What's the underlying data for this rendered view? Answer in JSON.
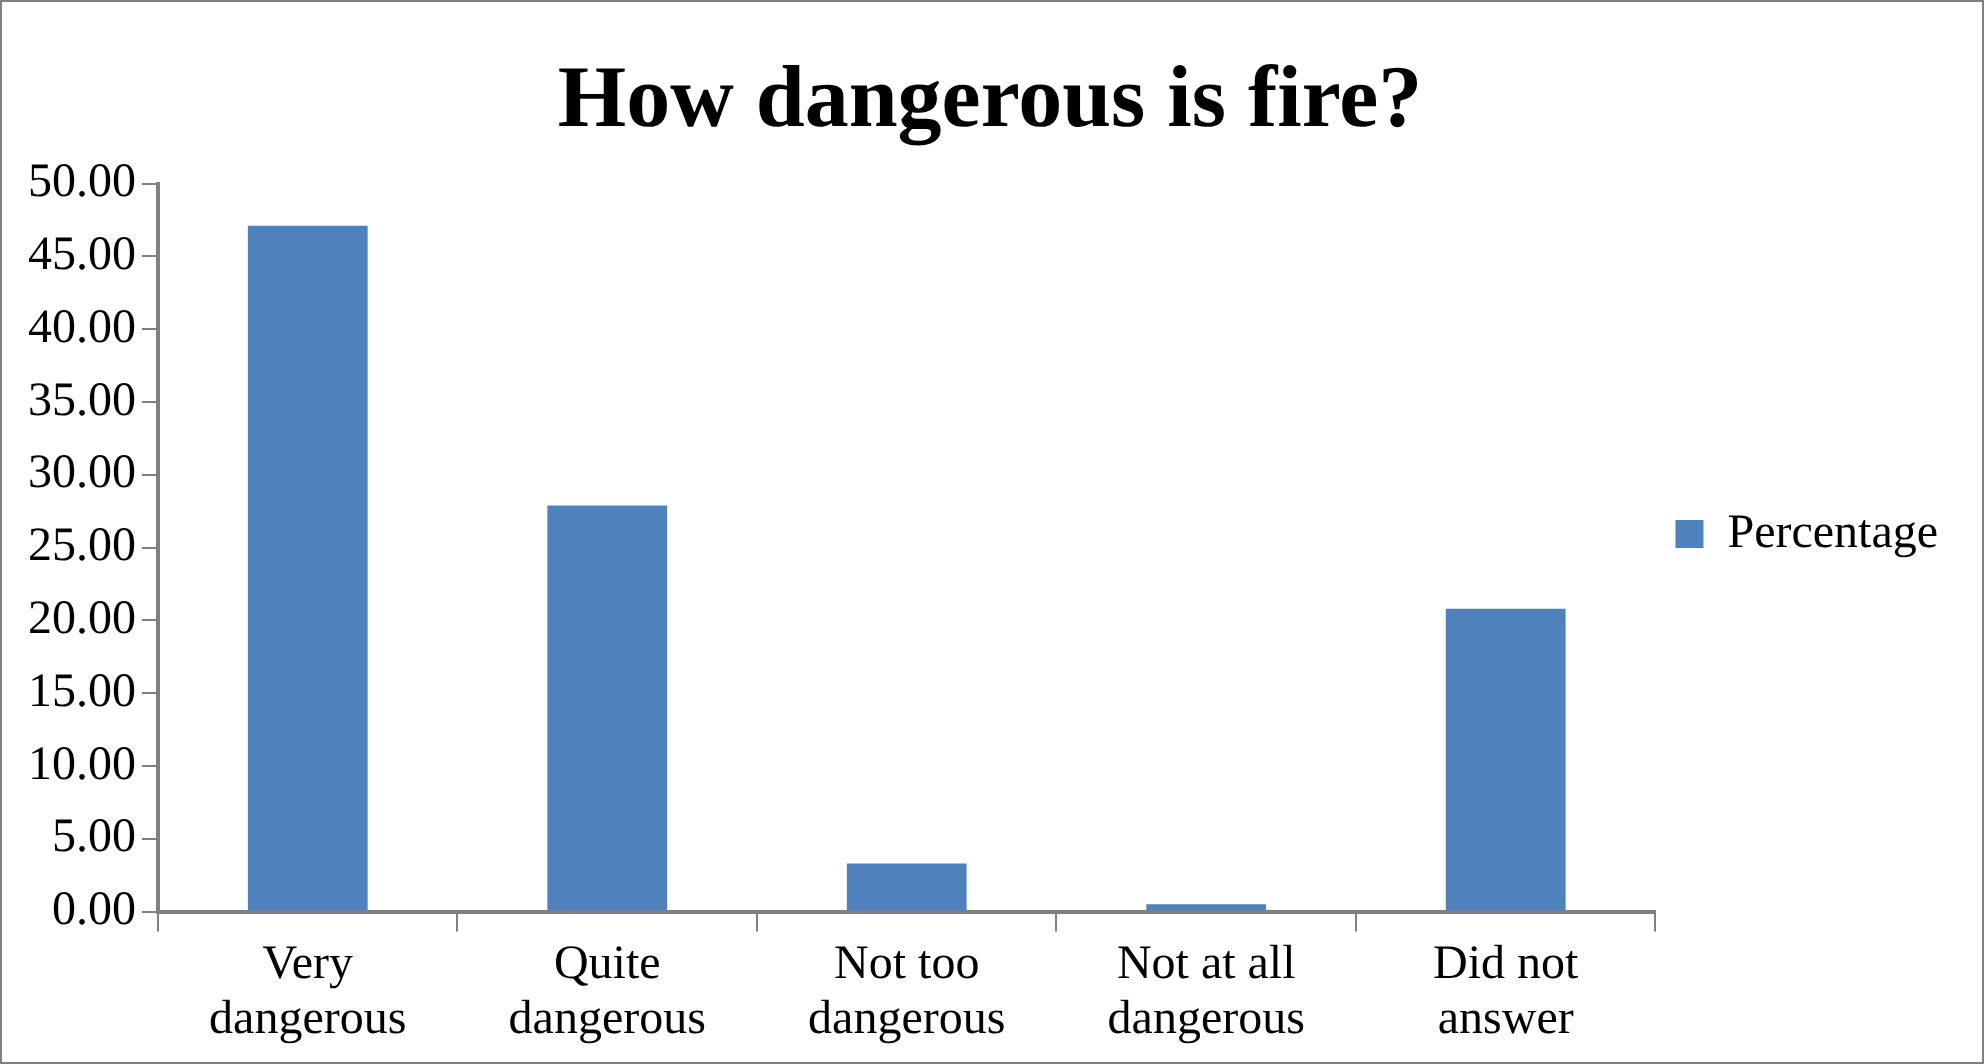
{
  "chart_data": {
    "type": "bar",
    "title": "How dangerous is fire?",
    "categories": [
      "Very dangerous",
      "Quite dangerous",
      "Not too dangerous",
      "Not at all dangerous",
      "Did not answer"
    ],
    "series": [
      {
        "name": "Percentage",
        "color": "#4f81bd",
        "values": [
          47.1,
          27.9,
          3.3,
          0.5,
          20.8
        ]
      }
    ],
    "ylim": [
      0,
      50
    ],
    "yticks": [
      {
        "value": 0,
        "label": "0.00"
      },
      {
        "value": 5,
        "label": "5.00"
      },
      {
        "value": 10,
        "label": "10.00"
      },
      {
        "value": 15,
        "label": "15.00"
      },
      {
        "value": 20,
        "label": "20.00"
      },
      {
        "value": 25,
        "label": "25.00"
      },
      {
        "value": 30,
        "label": "30.00"
      },
      {
        "value": 35,
        "label": "35.00"
      },
      {
        "value": 40,
        "label": "40.00"
      },
      {
        "value": 45,
        "label": "45.00"
      },
      {
        "value": 50,
        "label": "50.00"
      }
    ],
    "grid": false,
    "legend": "right"
  }
}
